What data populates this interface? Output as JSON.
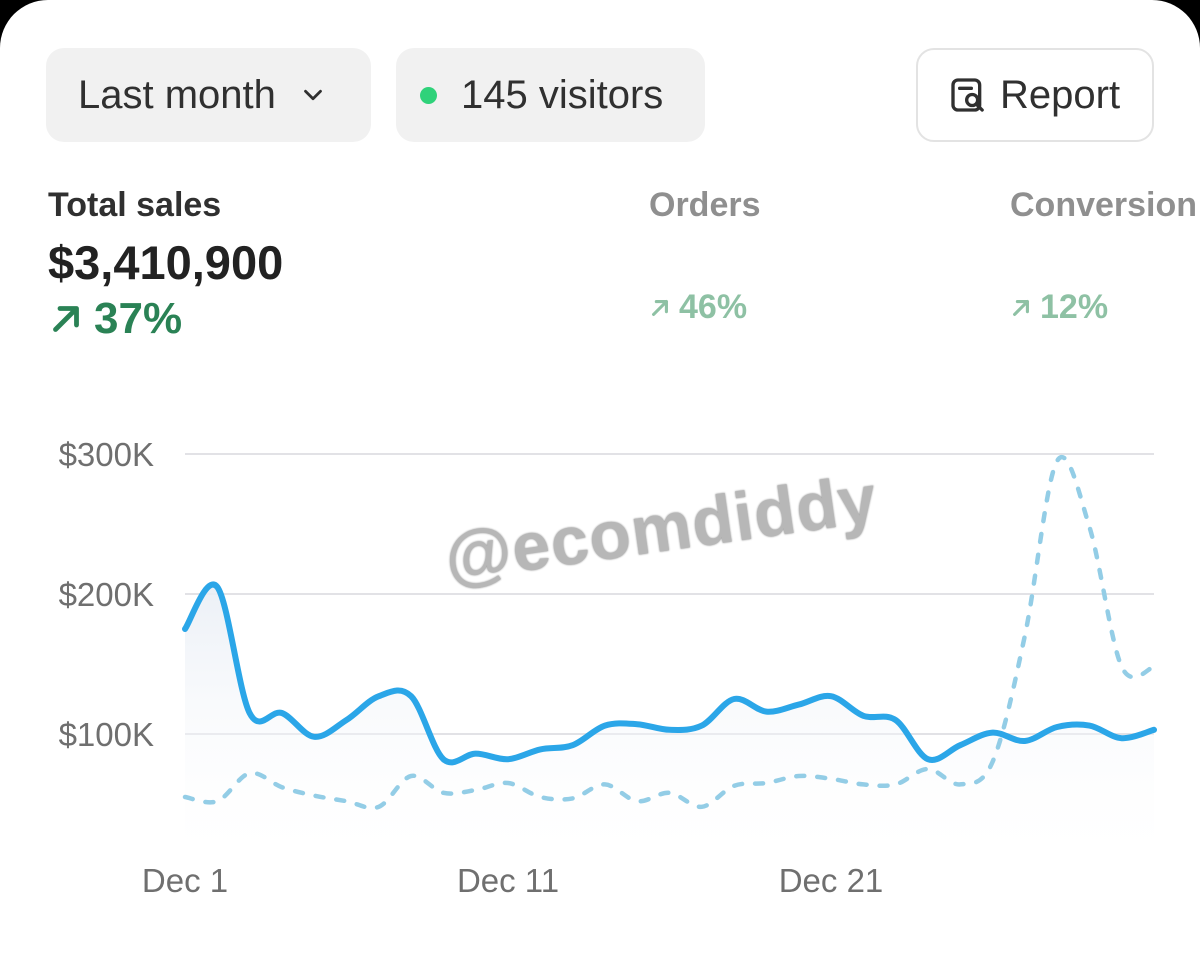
{
  "filters": {
    "range_label": "Last month",
    "visitors_label": "145 visitors",
    "report_label": "Report"
  },
  "metrics": {
    "total_sales": {
      "label": "Total sales",
      "value": "$3,410,900",
      "delta": "37%"
    },
    "orders": {
      "label": "Orders",
      "delta": "46%"
    },
    "conversion": {
      "label": "Conversion",
      "delta": "12%"
    }
  },
  "watermark": "@ecomdiddy",
  "colors": {
    "primary_line": "#2ba6e8",
    "comparison_line": "#93cde6",
    "up_green": "#2a8255",
    "muted_green": "#8ec1a4",
    "live_dot": "#2fd27a"
  },
  "chart_data": {
    "type": "line",
    "x_ticks": [
      "Dec 1",
      "Dec 11",
      "Dec 21"
    ],
    "y_ticks": [
      "$100K",
      "$200K",
      "$300K"
    ],
    "ylim": [
      0,
      300000
    ],
    "grid": true,
    "x": [
      1,
      2,
      3,
      4,
      5,
      6,
      7,
      8,
      9,
      10,
      11,
      12,
      13,
      14,
      15,
      16,
      17,
      18,
      19,
      20,
      21,
      22,
      23,
      24,
      25,
      26,
      27,
      28,
      29,
      30,
      31
    ],
    "series": [
      {
        "style": "solid",
        "values": [
          175000,
          205000,
          115000,
          115000,
          98000,
          110000,
          127000,
          127000,
          82000,
          86000,
          82000,
          89000,
          92000,
          106000,
          107000,
          103000,
          106000,
          125000,
          116000,
          121000,
          127000,
          113000,
          110000,
          82000,
          92000,
          101000,
          95000,
          105000,
          106000,
          97000,
          103000
        ]
      },
      {
        "style": "dashed",
        "values": [
          55000,
          52000,
          72000,
          62000,
          56000,
          52000,
          48000,
          70000,
          58000,
          60000,
          65000,
          55000,
          54000,
          64000,
          52000,
          58000,
          48000,
          63000,
          65000,
          70000,
          68000,
          64000,
          64000,
          75000,
          64000,
          80000,
          170000,
          295000,
          248000,
          148000,
          148000
        ]
      }
    ]
  }
}
